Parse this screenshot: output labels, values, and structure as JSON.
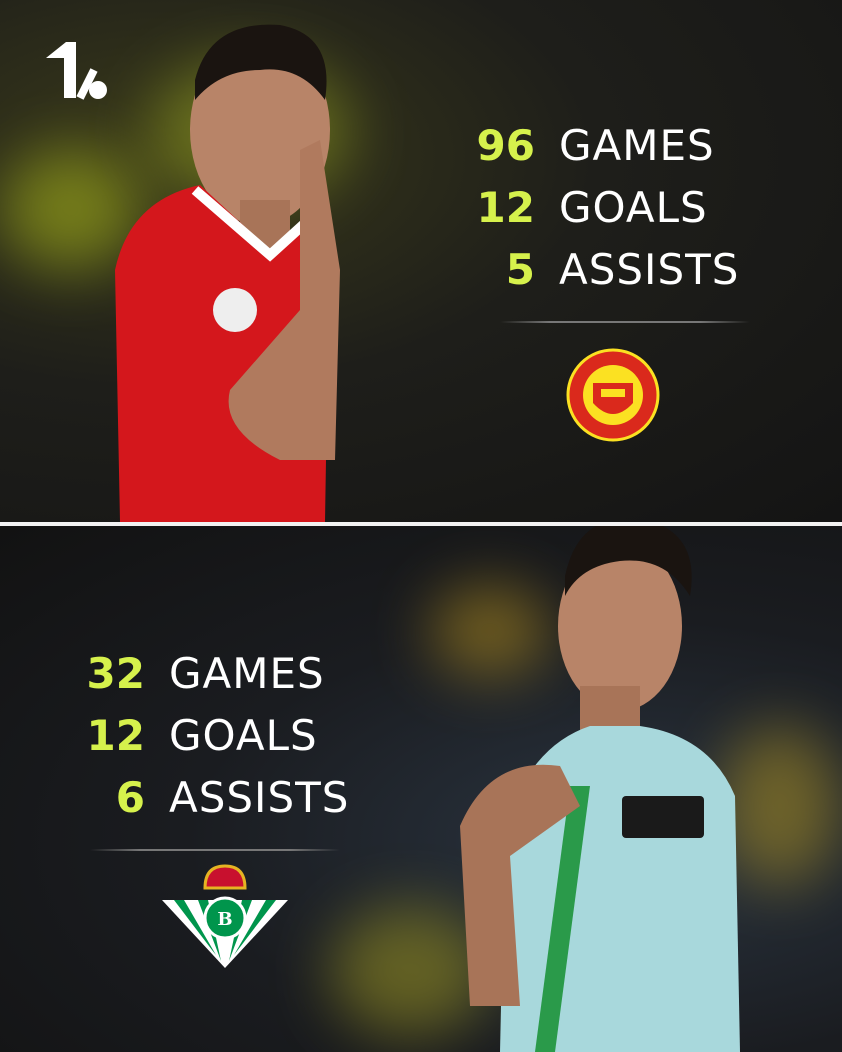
{
  "accent_color": "#d6f14c",
  "brand_logo": "onefootball-logo",
  "top": {
    "club": "Manchester United",
    "club_logo": "manchester-united-crest",
    "stats": [
      {
        "value": "96",
        "label": "GAMES"
      },
      {
        "value": "12",
        "label": "GOALS"
      },
      {
        "value": "5",
        "label": "ASSISTS"
      }
    ]
  },
  "bottom": {
    "club": "Real Betis",
    "club_logo": "real-betis-crest",
    "stats": [
      {
        "value": "32",
        "label": "GAMES"
      },
      {
        "value": "12",
        "label": "GOALS"
      },
      {
        "value": "6",
        "label": "ASSISTS"
      }
    ]
  }
}
